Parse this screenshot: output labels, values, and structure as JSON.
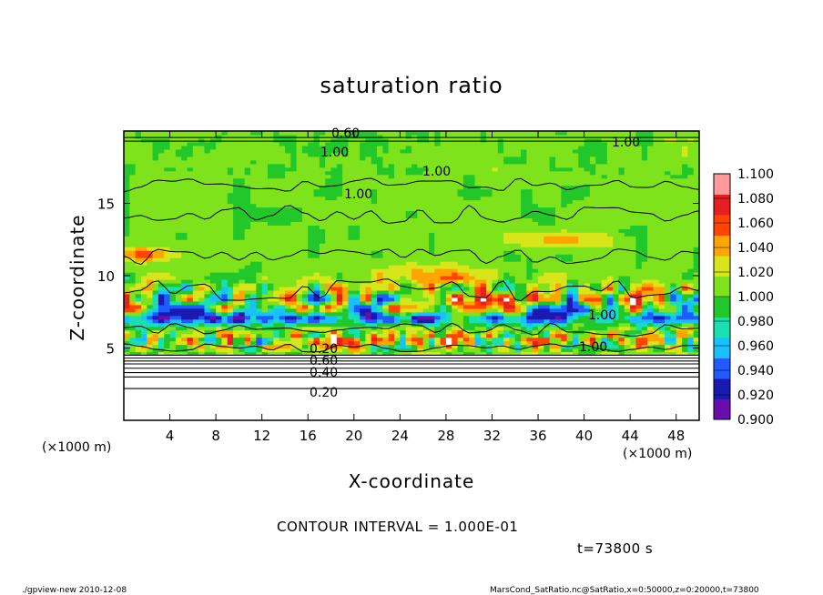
{
  "chart_data": {
    "type": "heatmap",
    "title": "saturation ratio",
    "xlabel": "X-coordinate",
    "ylabel": "Z-coordinate",
    "x_unit": "(×1000 m)",
    "y_unit": "(×1000 m)",
    "xlim": [
      0,
      50
    ],
    "ylim": [
      0,
      20
    ],
    "x_ticks": [
      4,
      8,
      12,
      16,
      20,
      24,
      28,
      32,
      36,
      40,
      44,
      48
    ],
    "y_ticks": [
      5,
      10,
      15
    ],
    "colorbar": {
      "levels": [
        0.9,
        0.92,
        0.94,
        0.96,
        0.98,
        1.0,
        1.02,
        1.04,
        1.06,
        1.08,
        1.1
      ],
      "labels": [
        "0.900",
        "0.920",
        "0.940",
        "0.960",
        "0.980",
        "1.000",
        "1.020",
        "1.040",
        "1.060",
        "1.080",
        "1.100"
      ],
      "colors": [
        "#6a0dad",
        "#1a1ab0",
        "#1f5bff",
        "#19c0ff",
        "#19e0b0",
        "#22c82a",
        "#7fe31c",
        "#d6e61a",
        "#ffa500",
        "#ff4500",
        "#e62020",
        "#ff9a9a"
      ]
    },
    "contour_labels": [
      "1.00",
      "1.00",
      "1.00",
      "1.00",
      "1.00",
      "1.00",
      "0.60",
      "0.20",
      "0.60",
      "0.40",
      "0.20"
    ],
    "contour_interval_text": "CONTOUR INTERVAL = 1.000E-01",
    "time_text": "t=73800 s"
  },
  "footer": {
    "left": "./gpview-new  2010-12-08",
    "right": "MarsCond_SatRatio.nc@SatRatio,x=0:50000,z=0:20000,t=73800"
  }
}
